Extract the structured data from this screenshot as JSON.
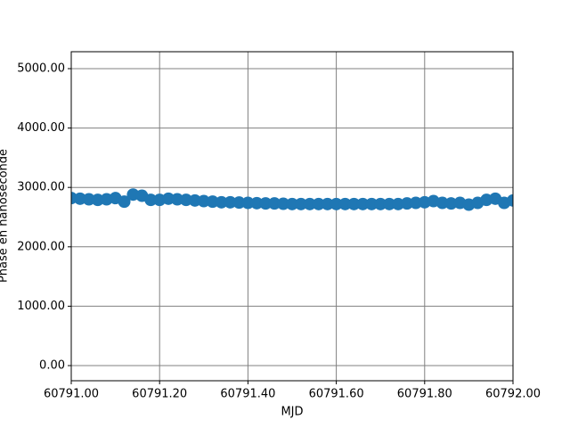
{
  "chart_data": {
    "type": "scatter",
    "x_label": "MJD",
    "y_label": "Phase en nanoseconde",
    "x": [
      60791.0,
      60791.02,
      60791.04,
      60791.06,
      60791.08,
      60791.1,
      60791.12,
      60791.14,
      60791.16,
      60791.18,
      60791.2,
      60791.22,
      60791.24,
      60791.26,
      60791.28,
      60791.3,
      60791.32,
      60791.34,
      60791.36,
      60791.38,
      60791.4,
      60791.42,
      60791.44,
      60791.46,
      60791.48,
      60791.5,
      60791.52,
      60791.54,
      60791.56,
      60791.58,
      60791.6,
      60791.62,
      60791.64,
      60791.66,
      60791.68,
      60791.7,
      60791.72,
      60791.74,
      60791.76,
      60791.78,
      60791.8,
      60791.82,
      60791.84,
      60791.86,
      60791.88,
      60791.9,
      60791.92,
      60791.94,
      60791.96,
      60791.98,
      60792.0
    ],
    "series": [
      {
        "color": "#1f77b4",
        "values": [
          2820,
          2810,
          2800,
          2790,
          2800,
          2820,
          2760,
          2880,
          2860,
          2790,
          2790,
          2810,
          2800,
          2790,
          2780,
          2770,
          2760,
          2750,
          2750,
          2745,
          2740,
          2735,
          2730,
          2730,
          2725,
          2720,
          2720,
          2720,
          2720,
          2720,
          2720,
          2720,
          2720,
          2720,
          2720,
          2720,
          2720,
          2720,
          2730,
          2740,
          2750,
          2770,
          2740,
          2730,
          2740,
          2710,
          2740,
          2790,
          2810,
          2740,
          2780
        ]
      }
    ],
    "xlim": [
      60791.0,
      60792.0
    ],
    "ylim": [
      -255,
      5285
    ],
    "xticks": [
      {
        "value": 60791.0,
        "label": "60791.00"
      },
      {
        "value": 60791.2,
        "label": "60791.20"
      },
      {
        "value": 60791.4,
        "label": "60791.40"
      },
      {
        "value": 60791.6,
        "label": "60791.60"
      },
      {
        "value": 60791.8,
        "label": "60791.80"
      },
      {
        "value": 60792.0,
        "label": "60792.00"
      }
    ],
    "yticks": [
      {
        "value": 0,
        "label": "0.00"
      },
      {
        "value": 1000,
        "label": "1000.00"
      },
      {
        "value": 2000,
        "label": "2000.00"
      },
      {
        "value": 3000,
        "label": "3000.00"
      },
      {
        "value": 4000,
        "label": "4000.00"
      },
      {
        "value": 5000,
        "label": "5000.00"
      }
    ],
    "grid": true
  }
}
